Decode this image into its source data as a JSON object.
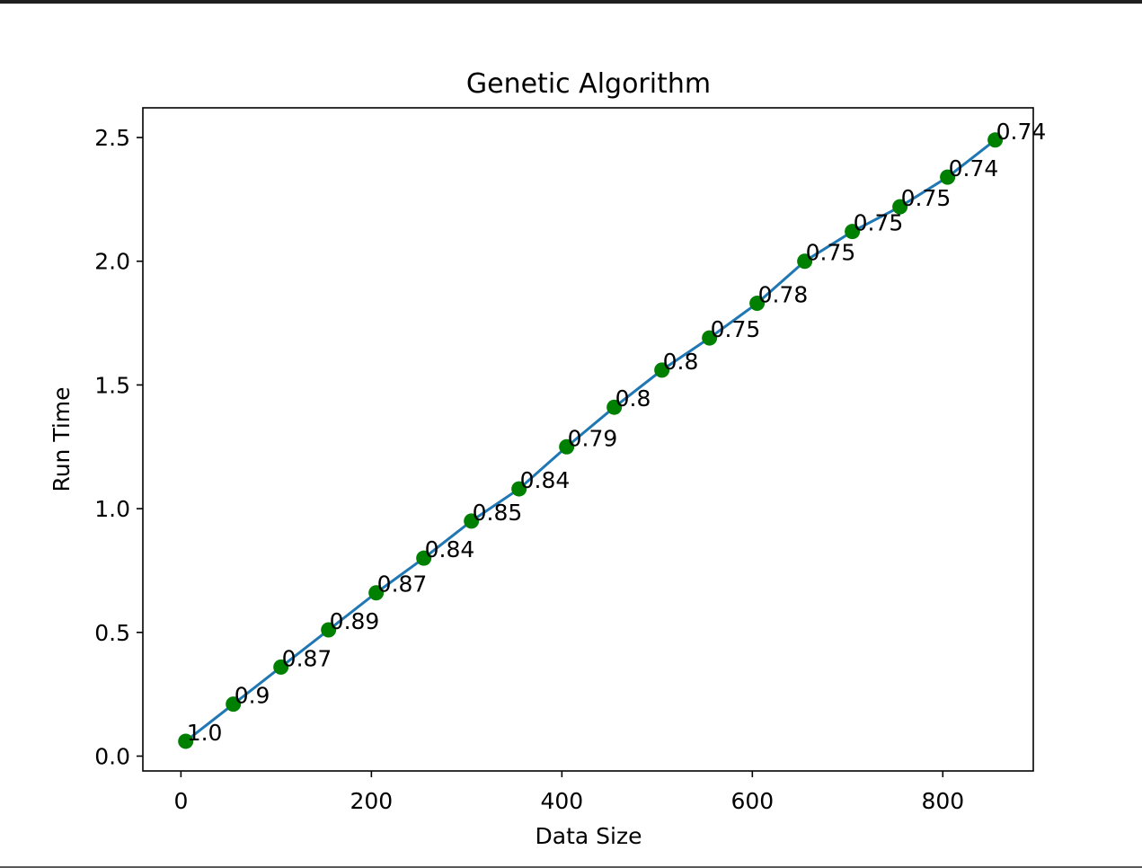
{
  "chart_data": {
    "type": "line",
    "title": "Genetic Algorithm",
    "xlabel": "Data Size",
    "ylabel": "Run Time",
    "xlim": [
      -40,
      895
    ],
    "ylim": [
      -0.06,
      2.62
    ],
    "xticks": [
      0,
      200,
      400,
      600,
      800
    ],
    "xtick_labels": [
      "0",
      "200",
      "400",
      "600",
      "800"
    ],
    "yticks": [
      0.0,
      0.5,
      1.0,
      1.5,
      2.0,
      2.5
    ],
    "ytick_labels": [
      "0.0",
      "0.5",
      "1.0",
      "1.5",
      "2.0",
      "2.5"
    ],
    "grid": false,
    "line_color": "#1f77b4",
    "marker_color": "#008000",
    "x": [
      5,
      55,
      105,
      155,
      205,
      255,
      305,
      355,
      405,
      455,
      505,
      555,
      605,
      655,
      705,
      755,
      805,
      855
    ],
    "y": [
      0.06,
      0.21,
      0.36,
      0.51,
      0.66,
      0.8,
      0.95,
      1.08,
      1.25,
      1.41,
      1.56,
      1.69,
      1.83,
      2.0,
      2.12,
      2.22,
      2.34,
      2.49
    ],
    "labels": [
      "1.0",
      "0.9",
      "0.87",
      "0.89",
      "0.87",
      "0.84",
      "0.85",
      "0.84",
      "0.79",
      "0.8",
      "0.8",
      "0.75",
      "0.78",
      "0.75",
      "0.75",
      "0.75",
      "0.74",
      "0.74"
    ]
  }
}
